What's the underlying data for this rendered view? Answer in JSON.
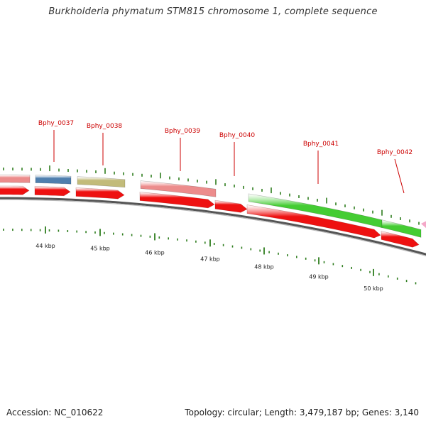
{
  "title": "Burkholderia phymatum STM815 chromosome 1, complete sequence",
  "footer": {
    "accession": "Accession: NC_010622",
    "summary": "Topology: circular; Length: 3,479,187 bp; Genes: 3,140"
  },
  "colors": {
    "backbone": "#8a8a8a",
    "tick": "#2e7d1e",
    "gene_label": "#cc0000",
    "cds_arrow": "#ee1111",
    "pink_gene": "#ec8c8c",
    "blue_gene": "#4f7fae",
    "olive_gene": "#c2bb7a",
    "green_gene": "#44cc33"
  },
  "scale_labels": [
    "44 kbp",
    "45 kbp",
    "46 kbp",
    "47 kbp",
    "48 kbp",
    "49 kbp",
    "50 kbp"
  ],
  "gene_labels": [
    "Bphy_0037",
    "Bphy_0038",
    "Bphy_0039",
    "Bphy_0040",
    "Bphy_0041",
    "Bphy_0042"
  ]
}
